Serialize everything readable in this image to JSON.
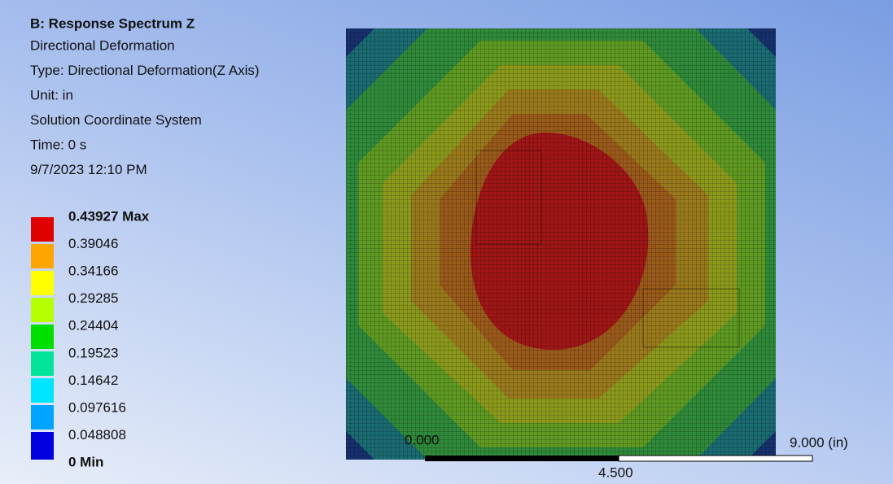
{
  "header": {
    "title": "B: Response Spectrum Z",
    "lines": [
      "Directional Deformation",
      "Type: Directional Deformation(Z Axis)",
      "Unit: in",
      "Solution Coordinate System",
      "Time: 0 s",
      "9/7/2023 12:10 PM"
    ]
  },
  "legend": {
    "labels": [
      "0.43927 Max",
      "0.39046",
      "0.34166",
      "0.29285",
      "0.24404",
      "0.19523",
      "0.14642",
      "0.097616",
      "0.048808",
      "0 Min"
    ]
  },
  "scale_bar": {
    "start": "0.000",
    "mid": "4.500",
    "end": "9.000 (in)"
  }
}
